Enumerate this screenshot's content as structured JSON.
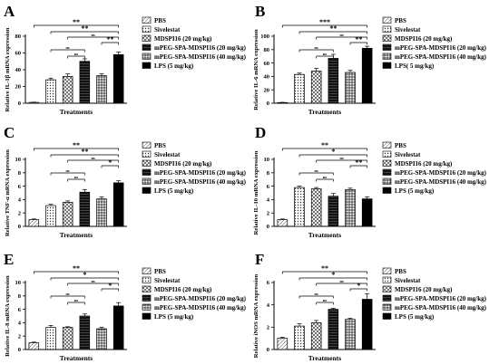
{
  "figure": {
    "legend_labels": [
      "PBS",
      "Sivelestat",
      "MDSPI16 (20 mg/kg)",
      "mPEG-SPA-MDSPI16 (20 mg/kg)",
      "mPEG-SPA-MDSPI16 (40 mg/kg)",
      "LPS (5 mg/kg)"
    ],
    "legend_labels_b": [
      "PBS",
      "Sivelestat",
      "MDSPI16 (20 mg/kg)",
      "mPEG-SPA-MDSPI16 (20 mg/kg)",
      "mPEG-SPA-MDSPI16 (40 mg/kg)",
      "LPS( 5 mg/kg)"
    ]
  },
  "chart_data": [
    {
      "panel": "A",
      "type": "bar",
      "categories": [
        "PBS",
        "Sivelestat",
        "MDSPI16 (20 mg/kg)",
        "mPEG-SPA-MDSPI16 (20 mg/kg)",
        "mPEG-SPA-MDSPI16 (40 mg/kg)",
        "LPS (5 mg/kg)"
      ],
      "values": [
        1,
        28,
        32,
        50,
        33,
        58
      ],
      "errors": [
        0.3,
        2,
        3,
        3,
        2,
        3
      ],
      "ylim": [
        0,
        80
      ],
      "yticks": [
        0,
        20,
        40,
        60,
        80
      ],
      "xlabel": "Treatments",
      "ylabel": "Relative IL-1β mRNA expression",
      "significance": [
        {
          "from": 0,
          "to": 5,
          "label": "**"
        },
        {
          "from": 1,
          "to": 5,
          "label": "**"
        },
        {
          "from": 2,
          "to": 5,
          "label": "ns"
        },
        {
          "from": 4,
          "to": 5,
          "label": "**"
        },
        {
          "from": 1,
          "to": 3,
          "label": "ns"
        },
        {
          "from": 2,
          "to": 3,
          "label": "ns"
        }
      ]
    },
    {
      "panel": "B",
      "type": "bar",
      "categories": [
        "PBS",
        "Sivelestat",
        "MDSPI16 (20 mg/kg)",
        "mPEG-SPA-MDSPI16 (20 mg/kg)",
        "mPEG-SPA-MDSPI16 (40 mg/kg)",
        "LPS( 5 mg/kg)"
      ],
      "values": [
        1,
        43,
        48,
        67,
        46,
        82
      ],
      "errors": [
        0.3,
        2,
        4,
        6,
        3,
        3
      ],
      "ylim": [
        0,
        100
      ],
      "yticks": [
        0,
        20,
        40,
        60,
        80,
        100
      ],
      "xlabel": "Treatments",
      "ylabel": "Relative IL-6 mRNA expression",
      "significance": [
        {
          "from": 0,
          "to": 5,
          "label": "***"
        },
        {
          "from": 1,
          "to": 5,
          "label": "**"
        },
        {
          "from": 2,
          "to": 5,
          "label": "ns"
        },
        {
          "from": 4,
          "to": 5,
          "label": "**"
        },
        {
          "from": 1,
          "to": 3,
          "label": "ns"
        },
        {
          "from": 2,
          "to": 3,
          "label": "ns"
        }
      ]
    },
    {
      "panel": "C",
      "type": "bar",
      "categories": [
        "PBS",
        "Sivelestat",
        "MDSPI16 (20 mg/kg)",
        "mPEG-SPA-MDSPI16 (20 mg/kg)",
        "mPEG-SPA-MDSPI16 (40 mg/kg)",
        "LPS (5 mg/kg)"
      ],
      "values": [
        1,
        3.1,
        3.6,
        5.1,
        4.1,
        6.5
      ],
      "errors": [
        0.1,
        0.2,
        0.2,
        0.4,
        0.3,
        0.3
      ],
      "ylim": [
        0,
        10
      ],
      "yticks": [
        0,
        2,
        4,
        6,
        8,
        10
      ],
      "xlabel": "Treatments",
      "ylabel": "Relative TNF-α mRNA expression",
      "significance": [
        {
          "from": 0,
          "to": 5,
          "label": "**"
        },
        {
          "from": 1,
          "to": 5,
          "label": "**"
        },
        {
          "from": 2,
          "to": 5,
          "label": "ns"
        },
        {
          "from": 4,
          "to": 5,
          "label": "*"
        },
        {
          "from": 1,
          "to": 3,
          "label": "ns"
        },
        {
          "from": 2,
          "to": 3,
          "label": "ns"
        }
      ]
    },
    {
      "panel": "D",
      "type": "bar",
      "categories": [
        "PBS",
        "Sivelestat",
        "MDSPI16 (20 mg/kg)",
        "mPEG-SPA-MDSPI16 (20 mg/kg)",
        "mPEG-SPA-MDSPI16 (40 mg/kg)",
        "LPS (5 mg/kg)"
      ],
      "values": [
        1,
        5.8,
        5.6,
        4.5,
        5.5,
        4.1
      ],
      "errors": [
        0.1,
        0.2,
        0.2,
        0.4,
        0.2,
        0.3
      ],
      "ylim": [
        0,
        10
      ],
      "yticks": [
        0,
        2,
        4,
        6,
        8,
        10
      ],
      "xlabel": "Treatments",
      "ylabel": "Relative IL-10 mRNA expression",
      "significance": [
        {
          "from": 0,
          "to": 5,
          "label": "**"
        },
        {
          "from": 1,
          "to": 5,
          "label": "*"
        },
        {
          "from": 2,
          "to": 5,
          "label": "ns"
        },
        {
          "from": 4,
          "to": 5,
          "label": "**"
        },
        {
          "from": 1,
          "to": 3,
          "label": "ns"
        },
        {
          "from": 2,
          "to": 3,
          "label": "ns"
        }
      ]
    },
    {
      "panel": "E",
      "type": "bar",
      "categories": [
        "PBS",
        "Sivelestat",
        "MDSPI16 (20 mg/kg)",
        "mPEG-SPA-MDSPI16 (20 mg/kg)",
        "mPEG-SPA-MDSPI16 (40 mg/kg)",
        "LPS (5 mg/kg)"
      ],
      "values": [
        1,
        3.3,
        3.3,
        5.0,
        3.1,
        6.5
      ],
      "errors": [
        0.1,
        0.3,
        0.1,
        0.3,
        0.2,
        0.5
      ],
      "ylim": [
        0,
        10
      ],
      "yticks": [
        0,
        2,
        4,
        6,
        8,
        10
      ],
      "xlabel": "Treatments",
      "ylabel": "Relative IL-8 mRNA expression",
      "significance": [
        {
          "from": 0,
          "to": 5,
          "label": "**"
        },
        {
          "from": 1,
          "to": 5,
          "label": "*"
        },
        {
          "from": 2,
          "to": 5,
          "label": "ns"
        },
        {
          "from": 4,
          "to": 5,
          "label": "*"
        },
        {
          "from": 1,
          "to": 3,
          "label": "ns"
        },
        {
          "from": 2,
          "to": 3,
          "label": "ns"
        }
      ]
    },
    {
      "panel": "F",
      "type": "bar",
      "categories": [
        "PBS",
        "Sivelestat",
        "MDSPI16 (20 mg/kg)",
        "mPEG-SPA-MDSPI16 (20 mg/kg)",
        "mPEG-SPA-MDSPI16 (40 mg/kg)",
        "LPS (5 mg/kg)"
      ],
      "values": [
        1,
        2.1,
        2.4,
        3.6,
        2.7,
        4.5
      ],
      "errors": [
        0.1,
        0.2,
        0.2,
        0.1,
        0.1,
        0.5
      ],
      "ylim": [
        0,
        6
      ],
      "yticks": [
        0,
        2,
        4,
        6
      ],
      "xlabel": "Treatments",
      "ylabel": "Relative iNOS mRNA expression",
      "significance": [
        {
          "from": 0,
          "to": 5,
          "label": "**"
        },
        {
          "from": 1,
          "to": 5,
          "label": "*"
        },
        {
          "from": 2,
          "to": 5,
          "label": "ns"
        },
        {
          "from": 4,
          "to": 5,
          "label": "*"
        },
        {
          "from": 1,
          "to": 3,
          "label": "ns"
        },
        {
          "from": 2,
          "to": 3,
          "label": "ns"
        }
      ]
    }
  ]
}
